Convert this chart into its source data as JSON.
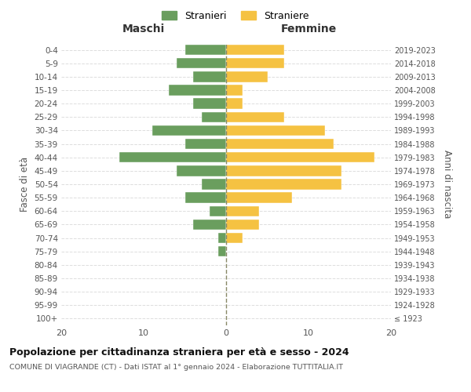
{
  "age_groups": [
    "100+",
    "95-99",
    "90-94",
    "85-89",
    "80-84",
    "75-79",
    "70-74",
    "65-69",
    "60-64",
    "55-59",
    "50-54",
    "45-49",
    "40-44",
    "35-39",
    "30-34",
    "25-29",
    "20-24",
    "15-19",
    "10-14",
    "5-9",
    "0-4"
  ],
  "birth_years": [
    "≤ 1923",
    "1924-1928",
    "1929-1933",
    "1934-1938",
    "1939-1943",
    "1944-1948",
    "1949-1953",
    "1954-1958",
    "1959-1963",
    "1964-1968",
    "1969-1973",
    "1974-1978",
    "1979-1983",
    "1984-1988",
    "1989-1993",
    "1994-1998",
    "1999-2003",
    "2004-2008",
    "2009-2013",
    "2014-2018",
    "2019-2023"
  ],
  "maschi": [
    0,
    0,
    0,
    0,
    0,
    1,
    1,
    4,
    2,
    5,
    3,
    6,
    13,
    5,
    9,
    3,
    4,
    7,
    4,
    6,
    5
  ],
  "femmine": [
    0,
    0,
    0,
    0,
    0,
    0,
    2,
    4,
    4,
    8,
    14,
    14,
    18,
    13,
    12,
    7,
    2,
    2,
    5,
    7,
    7
  ],
  "color_maschi": "#6a9e5e",
  "color_femmine": "#f5c242",
  "title": "Popolazione per cittadinanza straniera per età e sesso - 2024",
  "subtitle": "COMUNE DI VIAGRANDE (CT) - Dati ISTAT al 1° gennaio 2024 - Elaborazione TUTTITALIA.IT",
  "ylabel_left": "Fasce di età",
  "ylabel_right": "Anni di nascita",
  "xlabel_left": "Maschi",
  "xlabel_right": "Femmine",
  "legend_maschi": "Stranieri",
  "legend_femmine": "Straniere",
  "xlim": 20,
  "background_color": "#ffffff",
  "grid_color": "#dddddd"
}
